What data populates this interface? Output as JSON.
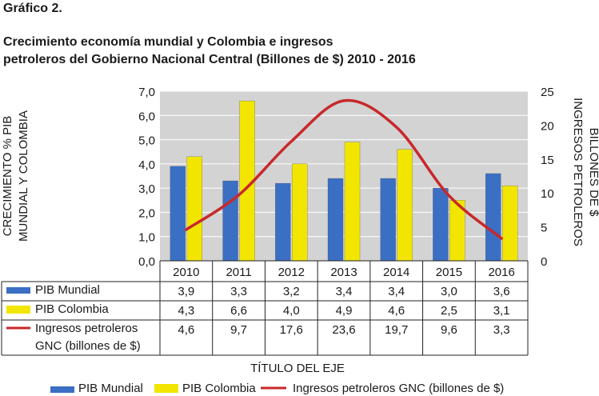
{
  "figure_label": "Gráfico 2.",
  "title_line1": "Crecimiento economía mundial y Colombia e ingresos",
  "title_line2": "petroleros del Gobierno Nacional Central (Billones de $) 2010 - 2016",
  "chart_data": {
    "type": "bar",
    "categories": [
      "2010",
      "2011",
      "2012",
      "2013",
      "2014",
      "2015",
      "2016"
    ],
    "series": [
      {
        "name": "PIB Mundial",
        "values": [
          3.9,
          3.3,
          3.2,
          3.4,
          3.4,
          3.0,
          3.6
        ],
        "color": "#3a6fc4",
        "axis": "left",
        "kind": "bar"
      },
      {
        "name": "PIB Colombia",
        "values": [
          4.3,
          6.6,
          4.0,
          4.9,
          4.6,
          2.5,
          3.1
        ],
        "color": "#f2e600",
        "axis": "left",
        "kind": "bar"
      },
      {
        "name": "Ingresos petroleros GNC (billones de $)",
        "values": [
          4.6,
          9.7,
          17.6,
          23.6,
          19.7,
          9.6,
          3.3
        ],
        "color": "#c8282a",
        "axis": "right",
        "kind": "line"
      }
    ],
    "table_labels": [
      "PIB Mundial",
      "PIB Colombia",
      "Ingresos petroleros GNC (billones de $)"
    ],
    "table_values": [
      [
        "3,9",
        "3,3",
        "3,2",
        "3,4",
        "3,4",
        "3,0",
        "3,6"
      ],
      [
        "4,3",
        "6,6",
        "4,0",
        "4,9",
        "4,6",
        "2,5",
        "3,1"
      ],
      [
        "4,6",
        "9,7",
        "17,6",
        "23,6",
        "19,7",
        "9,6",
        "3,3"
      ]
    ],
    "ylabel_left": "CRECIMIENTO % PIB MUNDIAL Y COLOMBIA",
    "ylabel_right": "INGRESOS PETROLEROS BILLONES DE $",
    "xlabel": "TÍTULO DEL EJE",
    "ylim_left": [
      0,
      7
    ],
    "ylim_right": [
      0,
      25
    ],
    "yticks_left": [
      "0,0",
      "1,0",
      "2,0",
      "3,0",
      "4,0",
      "5,0",
      "6,0",
      "7,0"
    ],
    "yticks_right": [
      "0",
      "5",
      "10",
      "15",
      "20",
      "25"
    ],
    "grid": true,
    "plot_background": "#d3d3d3",
    "legend_position": "bottom"
  }
}
